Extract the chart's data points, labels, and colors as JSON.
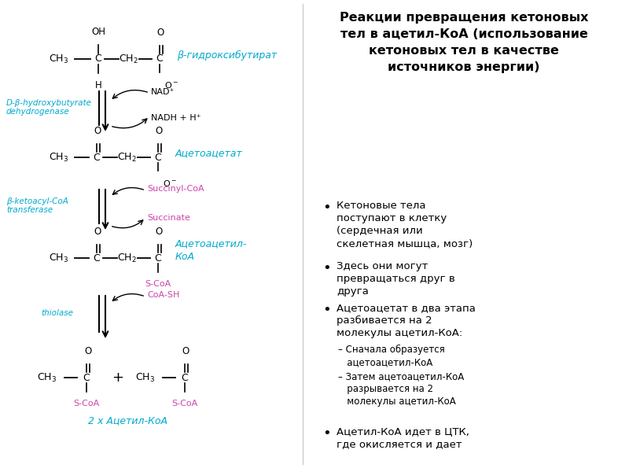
{
  "bg_color": "#ffffff",
  "title_text": "Реакции превращения кетоновых\nтел в ацетил-КоА (использование\nкетоновых тел в качестве\nисточников энергии)",
  "title_fontsize": 11.5,
  "cyan_color": "#00aacc",
  "magenta_color": "#cc44aa",
  "black_color": "#000000",
  "bullet_items": [
    "Кетоновые тела\nпоступают в клетку\n(сердечная или\nскелетная мышца, мозг)",
    "Здесь они могут\nпревращаться друг в\nдруга",
    "Ацетоацетат в два этапа\nразбивается на 2\nмолекулы ацетил-КоА:",
    "– Сначала образуется\n   ацетоацетил-КоА",
    "– Затем ацетоацетил-КоА\n   разрывается на 2\n   молекулы ацетил-КоА",
    "Ацетил-КоА идет в ЦТК,\nгде окисляется и дает"
  ],
  "enzyme1": "D-β-hydroxybutyrate\ndehydrogenase",
  "enzyme2": "β-ketoacyl-CoA\ntransferase",
  "enzyme3": "thiolase",
  "nad_plus": "NAD⁺",
  "nadh": "NADH + H⁺",
  "succinyl": "Succinyl-CoA",
  "succinate": "Succinate",
  "coash": "CoA-SH",
  "label1": "β-гидроксибутират",
  "label2": "Ацетоацетат",
  "label3": "Ацетоацетил-\nКоА",
  "label4": "2 x Ацетил-КоА"
}
